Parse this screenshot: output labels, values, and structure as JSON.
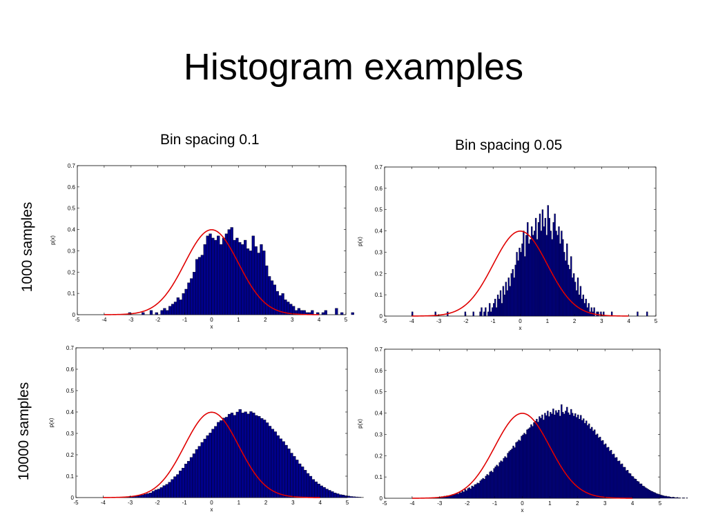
{
  "slide": {
    "title": "Histogram examples",
    "column_labels": [
      "Bin spacing 0.1",
      "Bin spacing 0.05"
    ],
    "row_labels": [
      "1000 samples",
      "10000 samples"
    ]
  },
  "colors": {
    "bars": "#00008b",
    "bar_edge": "#000000",
    "curve": "#e00000"
  },
  "chart_data": [
    {
      "type": "bar",
      "panel": "1000 samples, bin spacing 0.1",
      "xlabel": "x",
      "ylabel": "p(x)",
      "xlim": [
        -5,
        5
      ],
      "ylim": [
        0,
        0.7
      ],
      "xticks": [
        -5,
        -4,
        -3,
        -2,
        -1,
        0,
        1,
        2,
        3,
        4,
        5
      ],
      "yticks": [
        0,
        0.1,
        0.2,
        0.3,
        0.4,
        0.5,
        0.6,
        0.7
      ],
      "grid": false,
      "bin_width": 0.1,
      "bin_start": -3.1,
      "values": [
        0.01,
        0,
        0,
        0,
        0,
        0.01,
        0,
        0,
        0.02,
        0,
        0.01,
        0,
        0.02,
        0.03,
        0.02,
        0.04,
        0.05,
        0.06,
        0.08,
        0.07,
        0.1,
        0.12,
        0.15,
        0.17,
        0.2,
        0.26,
        0.27,
        0.28,
        0.33,
        0.37,
        0.38,
        0.36,
        0.35,
        0.37,
        0.33,
        0.36,
        0.38,
        0.4,
        0.41,
        0.35,
        0.36,
        0.34,
        0.33,
        0.35,
        0.31,
        0.3,
        0.37,
        0.32,
        0.29,
        0.33,
        0.3,
        0.23,
        0.18,
        0.16,
        0.14,
        0.11,
        0.09,
        0.1,
        0.07,
        0.06,
        0.05,
        0.04,
        0.02,
        0.03,
        0.02,
        0.02,
        0.01,
        0.01,
        0.02,
        0,
        0.01,
        0,
        0.01,
        0.02,
        0,
        0,
        0,
        0.03,
        0,
        0.01,
        0,
        0,
        0,
        0.01
      ],
      "series": [
        {
          "type": "line",
          "curve": "standard normal pdf",
          "x_range": [
            -4,
            4
          ]
        }
      ]
    },
    {
      "type": "bar",
      "panel": "1000 samples, bin spacing 0.05",
      "xlabel": "x",
      "ylabel": "p(x)",
      "xlim": [
        -5,
        5
      ],
      "ylim": [
        0,
        0.7
      ],
      "xticks": [
        -5,
        -4,
        -3,
        -2,
        -1,
        0,
        1,
        2,
        3,
        4,
        5
      ],
      "yticks": [
        0,
        0.1,
        0.2,
        0.3,
        0.4,
        0.5,
        0.6,
        0.7
      ],
      "grid": false,
      "bin_width": 0.05,
      "bin_start": -4.0,
      "values": [
        0.02,
        0,
        0,
        0,
        0,
        0,
        0,
        0,
        0,
        0,
        0,
        0,
        0,
        0,
        0,
        0,
        0,
        0.02,
        0,
        0,
        0,
        0,
        0,
        0,
        0,
        0,
        0.02,
        0,
        0,
        0,
        0,
        0,
        0,
        0,
        0,
        0,
        0,
        0,
        0,
        0.02,
        0,
        0,
        0,
        0,
        0,
        0.02,
        0,
        0,
        0,
        0,
        0.02,
        0.04,
        0,
        0.02,
        0.04,
        0,
        0.02,
        0.06,
        0.02,
        0.04,
        0.06,
        0.08,
        0.04,
        0.1,
        0.08,
        0.12,
        0.06,
        0.14,
        0.1,
        0.16,
        0.12,
        0.18,
        0.14,
        0.2,
        0.22,
        0.18,
        0.24,
        0.3,
        0.26,
        0.32,
        0.3,
        0.34,
        0.4,
        0.28,
        0.38,
        0.44,
        0.34,
        0.36,
        0.42,
        0.38,
        0.4,
        0.46,
        0.36,
        0.44,
        0.48,
        0.4,
        0.5,
        0.42,
        0.46,
        0.38,
        0.52,
        0.46,
        0.4,
        0.36,
        0.44,
        0.48,
        0.4,
        0.38,
        0.42,
        0.34,
        0.4,
        0.36,
        0.3,
        0.26,
        0.34,
        0.24,
        0.22,
        0.28,
        0.18,
        0.2,
        0.16,
        0.12,
        0.18,
        0.1,
        0.14,
        0.08,
        0.1,
        0.06,
        0.08,
        0.04,
        0.06,
        0.02,
        0.04,
        0.02,
        0.04,
        0,
        0.02,
        0.02,
        0,
        0.02,
        0,
        0.02,
        0,
        0,
        0,
        0,
        0,
        0.02,
        0,
        0,
        0,
        0,
        0,
        0,
        0,
        0,
        0,
        0,
        0,
        0,
        0,
        0,
        0,
        0,
        0,
        0,
        0.02,
        0,
        0,
        0,
        0,
        0,
        0,
        0.02
      ],
      "series": [
        {
          "type": "line",
          "curve": "standard normal pdf",
          "x_range": [
            -4,
            4
          ]
        }
      ]
    },
    {
      "type": "bar",
      "panel": "10000 samples, bin spacing 0.1",
      "xlabel": "x",
      "ylabel": "p(x)",
      "xlim": [
        -5,
        5
      ],
      "ylim": [
        0,
        0.7
      ],
      "xticks": [
        -5,
        -4,
        -3,
        -2,
        -1,
        0,
        1,
        2,
        3,
        4,
        5
      ],
      "yticks": [
        0,
        0.1,
        0.2,
        0.3,
        0.4,
        0.5,
        0.6,
        0.7
      ],
      "grid": false,
      "bin_width": 0.1,
      "bin_start": -3.5,
      "values": [
        0.001,
        0.001,
        0.002,
        0.003,
        0.004,
        0.005,
        0.006,
        0.008,
        0.01,
        0.012,
        0.016,
        0.019,
        0.022,
        0.03,
        0.036,
        0.04,
        0.047,
        0.056,
        0.062,
        0.072,
        0.085,
        0.098,
        0.108,
        0.125,
        0.138,
        0.157,
        0.17,
        0.188,
        0.205,
        0.225,
        0.24,
        0.258,
        0.274,
        0.29,
        0.302,
        0.32,
        0.333,
        0.352,
        0.36,
        0.372,
        0.376,
        0.39,
        0.396,
        0.385,
        0.4,
        0.412,
        0.396,
        0.401,
        0.391,
        0.402,
        0.396,
        0.384,
        0.38,
        0.37,
        0.363,
        0.35,
        0.334,
        0.32,
        0.308,
        0.29,
        0.275,
        0.262,
        0.245,
        0.228,
        0.208,
        0.193,
        0.176,
        0.158,
        0.144,
        0.128,
        0.113,
        0.1,
        0.085,
        0.074,
        0.064,
        0.055,
        0.048,
        0.04,
        0.034,
        0.028,
        0.022,
        0.018,
        0.014,
        0.012,
        0.009,
        0.007,
        0.005,
        0.004,
        0.003,
        0.002,
        0.001
      ],
      "series": [
        {
          "type": "line",
          "curve": "standard normal pdf",
          "x_range": [
            -4,
            4
          ]
        }
      ]
    },
    {
      "type": "bar",
      "panel": "10000 samples, bin spacing 0.05",
      "xlabel": "x",
      "ylabel": "p(x)",
      "xlim": [
        -5,
        5
      ],
      "ylim": [
        0,
        0.7
      ],
      "xticks": [
        -5,
        -4,
        -3,
        -2,
        -1,
        0,
        1,
        2,
        3,
        4,
        5
      ],
      "yticks": [
        0,
        0.1,
        0.2,
        0.3,
        0.4,
        0.5,
        0.6,
        0.7
      ],
      "grid": false,
      "bin_width": 0.05,
      "bin_start": -3.5,
      "values": [
        0.002,
        0,
        0.002,
        0.002,
        0,
        0.004,
        0.002,
        0.004,
        0.004,
        0.006,
        0.004,
        0.008,
        0.006,
        0.01,
        0.008,
        0.012,
        0.01,
        0.014,
        0.012,
        0.018,
        0.016,
        0.02,
        0.024,
        0.02,
        0.03,
        0.026,
        0.034,
        0.03,
        0.042,
        0.036,
        0.046,
        0.05,
        0.044,
        0.058,
        0.054,
        0.064,
        0.066,
        0.072,
        0.07,
        0.082,
        0.088,
        0.094,
        0.09,
        0.104,
        0.112,
        0.108,
        0.124,
        0.128,
        0.122,
        0.14,
        0.148,
        0.156,
        0.15,
        0.168,
        0.176,
        0.172,
        0.188,
        0.196,
        0.19,
        0.212,
        0.22,
        0.226,
        0.232,
        0.246,
        0.238,
        0.262,
        0.266,
        0.274,
        0.27,
        0.292,
        0.298,
        0.306,
        0.3,
        0.322,
        0.326,
        0.332,
        0.346,
        0.338,
        0.356,
        0.362,
        0.372,
        0.358,
        0.384,
        0.376,
        0.392,
        0.368,
        0.4,
        0.388,
        0.41,
        0.384,
        0.404,
        0.396,
        0.42,
        0.392,
        0.412,
        0.402,
        0.414,
        0.386,
        0.44,
        0.404,
        0.396,
        0.41,
        0.428,
        0.402,
        0.392,
        0.418,
        0.4,
        0.386,
        0.398,
        0.38,
        0.392,
        0.372,
        0.39,
        0.366,
        0.374,
        0.352,
        0.364,
        0.342,
        0.35,
        0.326,
        0.334,
        0.316,
        0.322,
        0.298,
        0.302,
        0.284,
        0.288,
        0.27,
        0.272,
        0.252,
        0.256,
        0.238,
        0.24,
        0.222,
        0.226,
        0.206,
        0.208,
        0.19,
        0.192,
        0.174,
        0.176,
        0.16,
        0.162,
        0.146,
        0.146,
        0.13,
        0.132,
        0.118,
        0.116,
        0.104,
        0.102,
        0.092,
        0.09,
        0.08,
        0.078,
        0.068,
        0.068,
        0.058,
        0.056,
        0.05,
        0.046,
        0.042,
        0.038,
        0.034,
        0.032,
        0.028,
        0.026,
        0.022,
        0.02,
        0.018,
        0.016,
        0.014,
        0.012,
        0.01,
        0.01,
        0.008,
        0.008,
        0.006,
        0.004,
        0.006,
        0.004,
        0.002,
        0.004,
        0.002,
        0.002,
        0,
        0.002,
        0.002,
        0,
        0.002
      ],
      "series": [
        {
          "type": "line",
          "curve": "standard normal pdf",
          "x_range": [
            -4,
            4
          ]
        }
      ]
    }
  ]
}
